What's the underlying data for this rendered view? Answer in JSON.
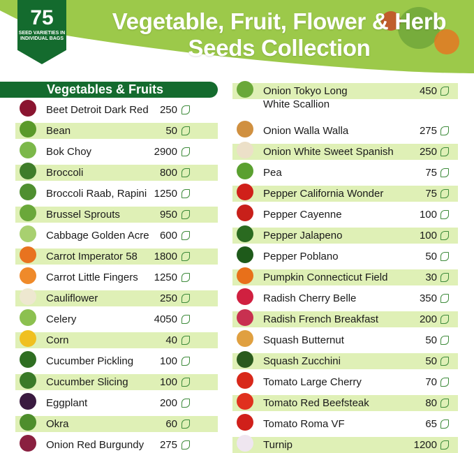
{
  "header": {
    "title_line1": "Vegetable, Fruit, Flower & Herb",
    "title_line2": "Seeds Collection",
    "badge_number": "75",
    "badge_text": "SEED VARIETIES IN INDIVIDUAL BAGS"
  },
  "section_title": "Vegetables & Fruits",
  "colors": {
    "dark_green": "#146b2e",
    "light_green": "#dff0b6",
    "header_green": "#9cc94a"
  },
  "left": [
    {
      "name": "Beet Detroit Dark Red",
      "qty": "250",
      "color": "#8a1530"
    },
    {
      "name": "Bean",
      "qty": "50",
      "color": "#5a9a2a"
    },
    {
      "name": "Bok Choy",
      "qty": "2900",
      "color": "#7cb84a"
    },
    {
      "name": "Broccoli",
      "qty": "800",
      "color": "#3f7d2a"
    },
    {
      "name": "Broccoli Raab, Rapini",
      "qty": "1250",
      "color": "#4f8f30"
    },
    {
      "name": "Brussel Sprouts",
      "qty": "950",
      "color": "#6aa83a"
    },
    {
      "name": "Cabbage Golden Acre",
      "qty": "600",
      "color": "#a8d070"
    },
    {
      "name": "Carrot Imperator 58",
      "qty": "1800",
      "color": "#e8731f"
    },
    {
      "name": "Carrot Little Fingers",
      "qty": "1250",
      "color": "#ef8a2a"
    },
    {
      "name": "Cauliflower",
      "qty": "250",
      "color": "#eee8d0"
    },
    {
      "name": "Celery",
      "qty": "4050",
      "color": "#8cc050"
    },
    {
      "name": "Corn",
      "qty": "40",
      "color": "#f0c020"
    },
    {
      "name": "Cucumber Pickling",
      "qty": "100",
      "color": "#2f6e22"
    },
    {
      "name": "Cucumber Slicing",
      "qty": "100",
      "color": "#3a7a28"
    },
    {
      "name": "Eggplant",
      "qty": "200",
      "color": "#3a1a40"
    },
    {
      "name": "Okra",
      "qty": "60",
      "color": "#4e8e2c"
    },
    {
      "name": "Onion Red Burgundy",
      "qty": "275",
      "color": "#8a2040"
    }
  ],
  "right": [
    {
      "name": "Onion Tokyo Long",
      "name2": "White Scallion",
      "qty": "450",
      "color": "#6aa83a"
    },
    {
      "name": "Onion Walla Walla",
      "qty": "275",
      "color": "#d09040"
    },
    {
      "name": "Onion White Sweet Spanish",
      "qty": "250",
      "color": "#ece0c8"
    },
    {
      "name": "Pea",
      "qty": "75",
      "color": "#5aa030"
    },
    {
      "name": "Pepper California Wonder",
      "qty": "75",
      "color": "#d0201a"
    },
    {
      "name": "Pepper Cayenne",
      "qty": "100",
      "color": "#c8201a"
    },
    {
      "name": "Pepper Jalapeno",
      "qty": "100",
      "color": "#2a6a20"
    },
    {
      "name": "Pepper Poblano",
      "qty": "50",
      "color": "#1e5a1a"
    },
    {
      "name": "Pumpkin Connecticut Field",
      "qty": "30",
      "color": "#e8701a"
    },
    {
      "name": "Radish Cherry Belle",
      "qty": "350",
      "color": "#d02040"
    },
    {
      "name": "Radish French Breakfast",
      "qty": "200",
      "color": "#c83050"
    },
    {
      "name": "Squash Butternut",
      "qty": "50",
      "color": "#e0a040"
    },
    {
      "name": "Squash Zucchini",
      "qty": "50",
      "color": "#2a5a1e"
    },
    {
      "name": "Tomato Large Cherry",
      "qty": "70",
      "color": "#d8281a"
    },
    {
      "name": "Tomato Red Beefsteak",
      "qty": "80",
      "color": "#e0301e"
    },
    {
      "name": "Tomato Roma VF",
      "qty": "65",
      "color": "#d0201a"
    },
    {
      "name": "Turnip",
      "qty": "1200",
      "color": "#efe6f0"
    }
  ]
}
